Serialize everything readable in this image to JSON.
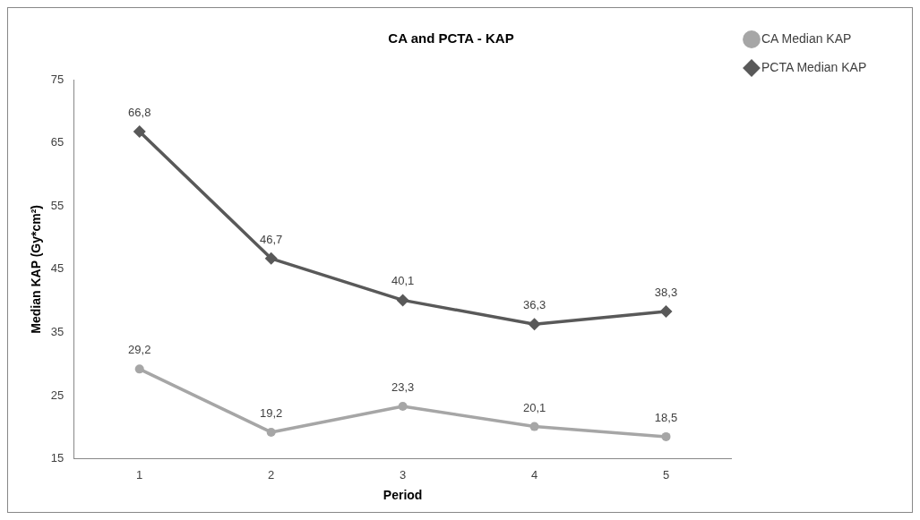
{
  "chart_data": {
    "type": "line",
    "title": "CA and PCTA - KAP",
    "xlabel": "Period",
    "ylabel": "Median KAP (Gy*cm²)",
    "categories": [
      "1",
      "2",
      "3",
      "4",
      "5"
    ],
    "series": [
      {
        "name": "CA Median KAP",
        "color": "#a6a6a6",
        "marker": "circle",
        "values": [
          29.2,
          19.2,
          23.3,
          20.1,
          18.5
        ],
        "value_labels": [
          "29,2",
          "19,2",
          "23,3",
          "20,1",
          "18,5"
        ]
      },
      {
        "name": "PCTA Median KAP",
        "color": "#595959",
        "marker": "diamond",
        "values": [
          66.8,
          46.7,
          40.1,
          36.3,
          38.3
        ],
        "value_labels": [
          "66,8",
          "46,7",
          "40,1",
          "36,3",
          "38,3"
        ]
      }
    ],
    "ylim": [
      15,
      75
    ],
    "yticks": [
      15,
      25,
      35,
      45,
      55,
      65,
      75
    ],
    "grid": false,
    "legend": "top right",
    "line_style": "solid"
  }
}
